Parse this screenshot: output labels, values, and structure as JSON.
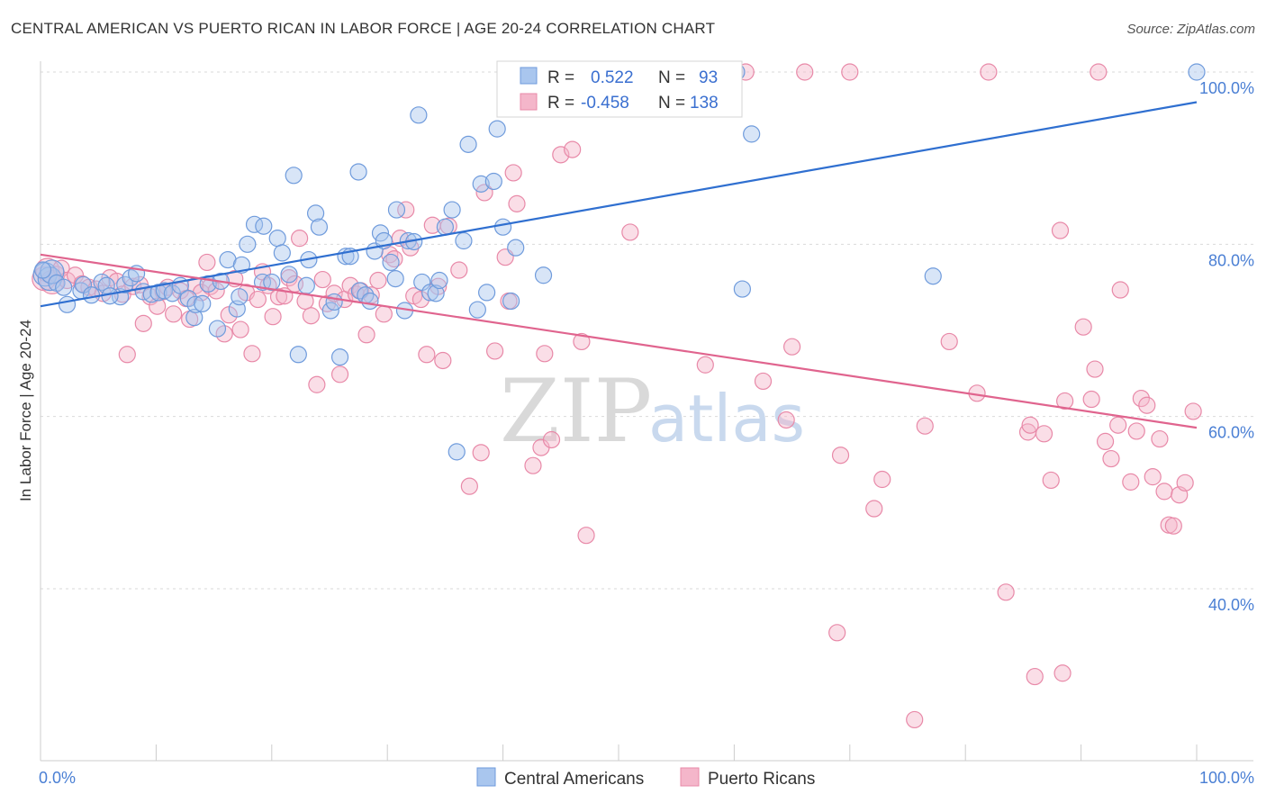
{
  "header": {
    "title": "CENTRAL AMERICAN VS PUERTO RICAN IN LABOR FORCE | AGE 20-24 CORRELATION CHART",
    "source": "Source: ZipAtlas.com"
  },
  "legend_top": {
    "rows": [
      {
        "r_label": "R =",
        "r_value": "0.522",
        "n_label": "N =",
        "n_value": "93"
      },
      {
        "r_label": "R =",
        "r_value": "-0.458",
        "n_label": "N =",
        "n_value": "138"
      }
    ]
  },
  "watermark": {
    "zip": "ZIP",
    "atlas": "atlas"
  },
  "colors": {
    "blue_fill": "#a9c6ee",
    "blue_stroke": "#6f9bdc",
    "blue_line": "#2f6fd0",
    "pink_fill": "#f4b6ca",
    "pink_stroke": "#e889a8",
    "pink_line": "#e0648e",
    "grid": "#d9d9d9"
  },
  "chart_data": {
    "type": "scatter",
    "title": "CENTRAL AMERICAN VS PUERTO RICAN IN LABOR FORCE | AGE 20-24 CORRELATION CHART",
    "xlabel": "",
    "ylabel": "In Labor Force | Age 20-24",
    "xlim": [
      0,
      100
    ],
    "ylim": [
      18,
      102
    ],
    "x_tick_labels": [
      "0.0%",
      "100.0%"
    ],
    "y_ticks": [
      40,
      60,
      80,
      100
    ],
    "y_tick_labels": [
      "40.0%",
      "60.0%",
      "80.0%",
      "100.0%"
    ],
    "grid": true,
    "legend_placement": "bottom-center",
    "series": [
      {
        "name": "Central Americans",
        "color": "#6f9bdc",
        "R": 0.522,
        "N": 93,
        "trend": [
          [
            0,
            72.8
          ],
          [
            100,
            96.5
          ]
        ],
        "points": [
          [
            0.4,
            76.5
          ],
          [
            0.8,
            76.0
          ],
          [
            1.0,
            76.8
          ],
          [
            1.4,
            75.5
          ],
          [
            2.0,
            75.0
          ],
          [
            2.3,
            73.0
          ],
          [
            3.5,
            74.6
          ],
          [
            3.7,
            75.3
          ],
          [
            4.4,
            74.1
          ],
          [
            5.3,
            75.6
          ],
          [
            5.7,
            75.2
          ],
          [
            6.9,
            73.9
          ],
          [
            7.3,
            75.3
          ],
          [
            7.8,
            76.1
          ],
          [
            8.3,
            76.6
          ],
          [
            8.9,
            74.5
          ],
          [
            9.6,
            74.2
          ],
          [
            10.2,
            74.4
          ],
          [
            10.7,
            74.6
          ],
          [
            11.4,
            74.3
          ],
          [
            12.1,
            75.2
          ],
          [
            12.8,
            73.7
          ],
          [
            13.3,
            71.5
          ],
          [
            13.4,
            73.0
          ],
          [
            14.0,
            73.1
          ],
          [
            14.5,
            75.4
          ],
          [
            15.3,
            70.2
          ],
          [
            15.6,
            75.7
          ],
          [
            16.2,
            78.2
          ],
          [
            17.0,
            72.5
          ],
          [
            17.2,
            73.9
          ],
          [
            17.4,
            77.6
          ],
          [
            17.9,
            80.0
          ],
          [
            18.5,
            82.3
          ],
          [
            19.3,
            82.1
          ],
          [
            19.2,
            75.6
          ],
          [
            20.0,
            75.6
          ],
          [
            20.5,
            80.7
          ],
          [
            20.9,
            79.0
          ],
          [
            21.5,
            76.5
          ],
          [
            21.9,
            88.0
          ],
          [
            22.3,
            67.2
          ],
          [
            23.0,
            75.2
          ],
          [
            23.2,
            78.2
          ],
          [
            23.8,
            83.6
          ],
          [
            24.1,
            82.0
          ],
          [
            25.1,
            72.3
          ],
          [
            25.4,
            73.3
          ],
          [
            25.9,
            66.9
          ],
          [
            26.4,
            78.6
          ],
          [
            26.8,
            78.6
          ],
          [
            27.5,
            88.4
          ],
          [
            27.6,
            74.6
          ],
          [
            28.1,
            74.1
          ],
          [
            28.5,
            73.4
          ],
          [
            28.9,
            79.2
          ],
          [
            29.4,
            81.3
          ],
          [
            29.7,
            80.4
          ],
          [
            30.3,
            77.9
          ],
          [
            30.7,
            76.0
          ],
          [
            30.8,
            84.0
          ],
          [
            31.5,
            72.3
          ],
          [
            31.8,
            80.4
          ],
          [
            32.3,
            80.3
          ],
          [
            32.7,
            95.0
          ],
          [
            33.0,
            75.6
          ],
          [
            33.7,
            74.4
          ],
          [
            34.2,
            74.3
          ],
          [
            34.5,
            75.8
          ],
          [
            35.0,
            82.0
          ],
          [
            35.6,
            84.0
          ],
          [
            36.0,
            55.9
          ],
          [
            36.6,
            80.4
          ],
          [
            37.0,
            91.6
          ],
          [
            37.8,
            72.4
          ],
          [
            38.1,
            87.0
          ],
          [
            38.6,
            74.4
          ],
          [
            39.2,
            87.3
          ],
          [
            39.5,
            93.4
          ],
          [
            40.0,
            82.0
          ],
          [
            40.7,
            73.4
          ],
          [
            41.1,
            79.6
          ],
          [
            43.5,
            76.4
          ],
          [
            44.6,
            97.0
          ],
          [
            45.0,
            100.0
          ],
          [
            56.8,
            100.0
          ],
          [
            60.2,
            100.0
          ],
          [
            60.7,
            74.8
          ],
          [
            61.5,
            92.8
          ],
          [
            77.2,
            76.3
          ],
          [
            100.0,
            100.0
          ],
          [
            0.2,
            77.0
          ],
          [
            6.0,
            74.0
          ]
        ]
      },
      {
        "name": "Puerto Ricans",
        "color": "#e889a8",
        "R": -0.458,
        "N": 138,
        "trend": [
          [
            0,
            78.8
          ],
          [
            100,
            58.7
          ]
        ],
        "points": [
          [
            0.3,
            76.0
          ],
          [
            0.6,
            77.0
          ],
          [
            1.0,
            75.6
          ],
          [
            1.4,
            76.5
          ],
          [
            1.8,
            77.2
          ],
          [
            2.3,
            75.8
          ],
          [
            3.0,
            76.4
          ],
          [
            3.6,
            75.4
          ],
          [
            4.2,
            75.0
          ],
          [
            4.8,
            74.8
          ],
          [
            5.4,
            74.3
          ],
          [
            6.0,
            76.1
          ],
          [
            6.6,
            75.7
          ],
          [
            7.1,
            74.2
          ],
          [
            7.5,
            67.2
          ],
          [
            8.0,
            75.1
          ],
          [
            8.6,
            75.3
          ],
          [
            8.9,
            70.8
          ],
          [
            9.5,
            73.9
          ],
          [
            10.1,
            72.8
          ],
          [
            10.6,
            74.5
          ],
          [
            11.0,
            75.0
          ],
          [
            11.5,
            71.9
          ],
          [
            12.1,
            74.6
          ],
          [
            12.6,
            73.7
          ],
          [
            12.9,
            71.3
          ],
          [
            13.4,
            75.2
          ],
          [
            13.9,
            74.4
          ],
          [
            14.4,
            77.9
          ],
          [
            14.7,
            75.1
          ],
          [
            15.2,
            74.6
          ],
          [
            15.9,
            69.6
          ],
          [
            16.3,
            71.8
          ],
          [
            16.8,
            76.0
          ],
          [
            17.3,
            70.1
          ],
          [
            17.8,
            74.4
          ],
          [
            18.3,
            67.3
          ],
          [
            18.8,
            73.6
          ],
          [
            19.2,
            76.8
          ],
          [
            19.7,
            75.2
          ],
          [
            20.1,
            71.6
          ],
          [
            20.6,
            73.9
          ],
          [
            21.1,
            74.0
          ],
          [
            21.5,
            76.1
          ],
          [
            22.0,
            75.4
          ],
          [
            22.4,
            80.7
          ],
          [
            22.9,
            73.4
          ],
          [
            23.4,
            71.7
          ],
          [
            23.9,
            63.7
          ],
          [
            24.4,
            75.9
          ],
          [
            24.8,
            73.1
          ],
          [
            25.4,
            74.3
          ],
          [
            25.9,
            64.9
          ],
          [
            26.3,
            73.6
          ],
          [
            26.8,
            75.2
          ],
          [
            27.3,
            74.2
          ],
          [
            27.7,
            74.6
          ],
          [
            28.2,
            69.5
          ],
          [
            28.6,
            74.1
          ],
          [
            29.2,
            75.8
          ],
          [
            29.7,
            71.9
          ],
          [
            30.2,
            78.8
          ],
          [
            30.6,
            78.3
          ],
          [
            31.1,
            80.7
          ],
          [
            31.6,
            84.0
          ],
          [
            32.0,
            79.6
          ],
          [
            32.3,
            74.0
          ],
          [
            32.9,
            73.6
          ],
          [
            33.4,
            67.2
          ],
          [
            33.9,
            82.2
          ],
          [
            34.4,
            75.1
          ],
          [
            34.8,
            66.5
          ],
          [
            35.3,
            82.1
          ],
          [
            36.2,
            77.0
          ],
          [
            37.1,
            51.9
          ],
          [
            38.1,
            55.8
          ],
          [
            38.4,
            86.0
          ],
          [
            39.3,
            67.6
          ],
          [
            40.2,
            78.5
          ],
          [
            40.5,
            73.4
          ],
          [
            40.9,
            88.3
          ],
          [
            41.2,
            84.7
          ],
          [
            42.6,
            54.3
          ],
          [
            43.3,
            56.4
          ],
          [
            43.6,
            67.3
          ],
          [
            44.2,
            57.3
          ],
          [
            45.0,
            90.4
          ],
          [
            46.0,
            91.0
          ],
          [
            46.8,
            68.7
          ],
          [
            47.2,
            46.2
          ],
          [
            49.3,
            100.0
          ],
          [
            51.0,
            81.4
          ],
          [
            54.9,
            100.0
          ],
          [
            57.5,
            66.0
          ],
          [
            61.0,
            100.0
          ],
          [
            62.5,
            64.1
          ],
          [
            64.5,
            59.6
          ],
          [
            65.0,
            68.1
          ],
          [
            66.1,
            100.0
          ],
          [
            69.2,
            55.5
          ],
          [
            68.9,
            34.9
          ],
          [
            70.0,
            100.0
          ],
          [
            72.1,
            49.3
          ],
          [
            72.8,
            52.7
          ],
          [
            75.6,
            24.8
          ],
          [
            76.5,
            58.9
          ],
          [
            78.6,
            68.7
          ],
          [
            81.0,
            62.7
          ],
          [
            82.0,
            100.0
          ],
          [
            83.5,
            39.6
          ],
          [
            85.4,
            58.2
          ],
          [
            85.6,
            59.0
          ],
          [
            86.8,
            58.0
          ],
          [
            87.4,
            52.6
          ],
          [
            88.2,
            81.6
          ],
          [
            88.4,
            30.2
          ],
          [
            88.6,
            61.8
          ],
          [
            90.2,
            70.4
          ],
          [
            90.9,
            62.0
          ],
          [
            91.2,
            65.5
          ],
          [
            91.5,
            100.0
          ],
          [
            92.1,
            57.1
          ],
          [
            92.6,
            55.1
          ],
          [
            93.2,
            59.0
          ],
          [
            93.4,
            74.7
          ],
          [
            94.3,
            52.4
          ],
          [
            94.8,
            58.3
          ],
          [
            95.2,
            62.1
          ],
          [
            95.7,
            61.3
          ],
          [
            96.2,
            53.0
          ],
          [
            96.8,
            57.4
          ],
          [
            97.2,
            51.3
          ],
          [
            97.6,
            47.4
          ],
          [
            98.0,
            47.3
          ],
          [
            98.5,
            50.9
          ],
          [
            99.0,
            52.3
          ],
          [
            99.7,
            60.6
          ],
          [
            86.0,
            29.8
          ]
        ]
      }
    ]
  },
  "legend_bottom": {
    "items": [
      {
        "label": "Central Americans"
      },
      {
        "label": "Puerto Ricans"
      }
    ]
  }
}
